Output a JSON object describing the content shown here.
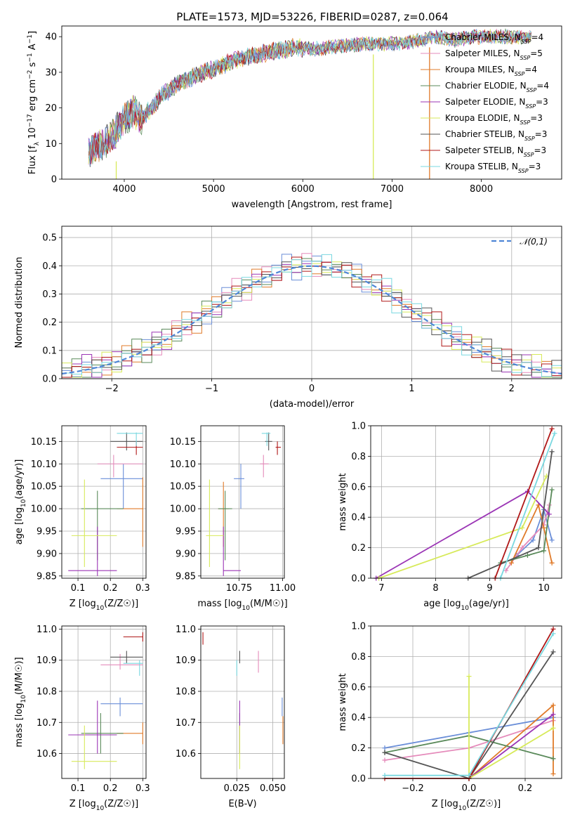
{
  "figure_title": "PLATE=1573, MJD=53226, FIBERID=0287, z=0.064",
  "colors": {
    "Chabrier MILES": "#6a8ed8",
    "Salpeter MILES": "#e58bbb",
    "Kroupa MILES": "#e07b2a",
    "Chabrier ELODIE": "#5a8a5a",
    "Salpeter ELODIE": "#9b35b5",
    "Kroupa ELODIE": "#d7ea5a",
    "Chabrier STELIB": "#555555",
    "Salpeter STELIB": "#b01818",
    "Kroupa STELIB": "#79d8e0",
    "grid": "#b0b0b0",
    "normal_curve": "#4f86d6"
  },
  "chart_data": [
    {
      "id": "spectrum",
      "type": "line",
      "xlabel": "wavelength [Angstrom, rest frame]",
      "ylabel": "Flux [f_λ 10^-17 erg cm^-2 s^-1 A^-1]",
      "xlim": [
        3300,
        8900
      ],
      "ylim": [
        0,
        43
      ],
      "xticks": [
        4000,
        5000,
        6000,
        7000,
        8000
      ],
      "yticks": [
        0,
        10,
        20,
        30,
        40
      ],
      "grid": false,
      "legend_position": "right",
      "legend": [
        {
          "label": "Chabrier MILES, N_SSP=4"
        },
        {
          "label": "Salpeter MILES, N_SSP=5"
        },
        {
          "label": "Kroupa MILES, N_SSP=4"
        },
        {
          "label": "Chabrier ELODIE, N_SSP=4"
        },
        {
          "label": "Salpeter ELODIE, N_SSP=3"
        },
        {
          "label": "Kroupa ELODIE, N_SSP=3"
        },
        {
          "label": "Chabrier STELIB, N_SSP=3"
        },
        {
          "label": "Salpeter STELIB, N_SSP=3"
        },
        {
          "label": "Kroupa STELIB, N_SSP=3"
        }
      ],
      "continuum": {
        "wavelength": [
          3600,
          3700,
          3800,
          3900,
          4000,
          4100,
          4200,
          4300,
          4400,
          4500,
          4600,
          4700,
          4800,
          4900,
          5000,
          5100,
          5200,
          5300,
          5500,
          5700,
          5900,
          6100,
          6300,
          6500,
          6700,
          6900,
          7100,
          7300,
          7500,
          7700,
          7900,
          8100,
          8300,
          8500
        ],
        "flux": [
          8,
          9,
          11,
          13,
          17,
          19,
          17,
          20,
          23,
          25,
          27,
          28,
          29,
          30,
          31,
          32,
          33,
          34,
          35,
          36,
          37,
          36.5,
          37,
          37.5,
          38,
          38,
          38,
          39,
          40,
          39,
          40,
          40,
          40,
          40
        ]
      },
      "spikes": [
        {
          "x": 3910,
          "y_top": 5
        },
        {
          "x": 6790,
          "y_top": 35
        },
        {
          "x": 7420,
          "y_top": 37
        }
      ]
    },
    {
      "id": "residuals",
      "type": "histogram",
      "xlabel": "(data-model)/error",
      "ylabel": "Normed distribution",
      "xlim": [
        -2.5,
        2.5
      ],
      "ylim": [
        0,
        0.54
      ],
      "xticks": [
        -2,
        -1,
        0,
        1,
        2
      ],
      "yticks": [
        0.0,
        0.1,
        0.2,
        0.3,
        0.4,
        0.5
      ],
      "grid": true,
      "legend_position": "upper right",
      "legend": [
        {
          "label": "𝒩(0,1)",
          "style": "dashed"
        }
      ],
      "bins": {
        "start": -2.5,
        "width": 0.1,
        "count": 50
      },
      "noise_pattern": [
        0.01,
        -0.02,
        0.03,
        0.0,
        -0.01,
        0.02,
        -0.03,
        0.01,
        0.04,
        -0.02,
        0.0,
        0.02,
        -0.01,
        0.03,
        -0.04,
        0.02,
        0.05,
        -0.03,
        0.01,
        0.0,
        -0.02,
        0.03,
        0.06,
        -0.05,
        0.02,
        0.04,
        -0.03,
        0.01,
        -0.02,
        0.05,
        -0.04,
        0.02,
        0.0,
        0.03,
        -0.01,
        -0.03,
        0.02,
        0.01,
        -0.02,
        0.03,
        0.0,
        -0.01,
        0.02,
        -0.02,
        0.01,
        0.0,
        0.02,
        -0.01,
        0.01,
        0.0
      ]
    },
    {
      "id": "age_vs_Z",
      "type": "errorbar",
      "xlabel": "Z [log10(Z/Z☉)]",
      "ylabel": "age [log10(age/yr)]",
      "xlim": [
        0.05,
        0.31
      ],
      "ylim": [
        9.845,
        10.185
      ],
      "xticks": [
        0.1,
        0.2,
        0.3
      ],
      "yticks": [
        9.85,
        9.9,
        9.95,
        10.0,
        10.05,
        10.1,
        10.15
      ],
      "grid": true,
      "points": [
        {
          "series": "Chabrier MILES",
          "x": 0.24,
          "y": 10.067,
          "xerr": [
            0.17,
            0.3
          ],
          "yerr": [
            10.0,
            10.1
          ]
        },
        {
          "series": "Salpeter MILES",
          "x": 0.21,
          "y": 10.1,
          "xerr": [
            0.16,
            0.3
          ],
          "yerr": [
            10.07,
            10.12
          ]
        },
        {
          "series": "Kroupa MILES",
          "x": 0.3,
          "y": 10.0,
          "xerr": [
            0.22,
            0.3
          ],
          "yerr": [
            9.915,
            10.07
          ]
        },
        {
          "series": "Chabrier ELODIE",
          "x": 0.16,
          "y": 10.0,
          "xerr": [
            0.11,
            0.24
          ],
          "yerr": [
            9.885,
            10.04
          ]
        },
        {
          "series": "Salpeter ELODIE",
          "x": 0.16,
          "y": 9.862,
          "xerr": [
            0.07,
            0.22
          ],
          "yerr": [
            9.85,
            9.96
          ]
        },
        {
          "series": "Kroupa ELODIE",
          "x": 0.12,
          "y": 9.94,
          "xerr": [
            0.08,
            0.22
          ],
          "yerr": [
            9.87,
            10.065
          ]
        },
        {
          "series": "Chabrier STELIB",
          "x": 0.25,
          "y": 10.15,
          "xerr": [
            0.2,
            0.3
          ],
          "yerr": [
            10.13,
            10.17
          ]
        },
        {
          "series": "Salpeter STELIB",
          "x": 0.28,
          "y": 10.137,
          "xerr": [
            0.22,
            0.3
          ],
          "yerr": [
            10.12,
            10.15
          ]
        },
        {
          "series": "Kroupa STELIB",
          "x": 0.28,
          "y": 10.168,
          "xerr": [
            0.22,
            0.3
          ],
          "yerr": [
            10.14,
            10.17
          ]
        }
      ]
    },
    {
      "id": "age_vs_mass",
      "type": "errorbar",
      "xlabel": "mass [log10(M/M☉)]",
      "ylabel": "",
      "xlim": [
        10.53,
        11.01
      ],
      "ylim": [
        9.845,
        10.185
      ],
      "xticks": [
        10.75,
        11.0
      ],
      "xticklabels": [
        "10.75",
        "11.00"
      ],
      "yticks": [
        9.85,
        9.9,
        9.95,
        10.0,
        10.05,
        10.1,
        10.15
      ],
      "grid": true,
      "points": [
        {
          "series": "Chabrier MILES",
          "x": 10.76,
          "y": 10.067,
          "xerr": [
            10.72,
            10.78
          ],
          "yerr": [
            10.0,
            10.1
          ]
        },
        {
          "series": "Salpeter MILES",
          "x": 10.89,
          "y": 10.1,
          "xerr": [
            10.87,
            10.92
          ],
          "yerr": [
            10.07,
            10.12
          ]
        },
        {
          "series": "Kroupa MILES",
          "x": 10.66,
          "y": 10.0,
          "xerr": [
            10.63,
            10.69
          ],
          "yerr": [
            9.915,
            10.06
          ]
        },
        {
          "series": "Chabrier ELODIE",
          "x": 10.67,
          "y": 10.0,
          "xerr": [
            10.63,
            10.71
          ],
          "yerr": [
            9.885,
            10.04
          ]
        },
        {
          "series": "Salpeter ELODIE",
          "x": 10.66,
          "y": 9.862,
          "xerr": [
            10.66,
            10.76
          ],
          "yerr": [
            9.85,
            9.96
          ]
        },
        {
          "series": "Kroupa ELODIE",
          "x": 10.58,
          "y": 9.94,
          "xerr": [
            10.56,
            10.66
          ],
          "yerr": [
            9.87,
            10.065
          ]
        },
        {
          "series": "Chabrier STELIB",
          "x": 10.92,
          "y": 10.15,
          "xerr": [
            10.9,
            10.94
          ],
          "yerr": [
            10.13,
            10.17
          ]
        },
        {
          "series": "Salpeter STELIB",
          "x": 10.97,
          "y": 10.137,
          "xerr": [
            10.96,
            10.99
          ],
          "yerr": [
            10.12,
            10.15
          ]
        },
        {
          "series": "Kroupa STELIB",
          "x": 10.91,
          "y": 10.168,
          "xerr": [
            10.88,
            10.93
          ],
          "yerr": [
            10.14,
            10.17
          ]
        }
      ]
    },
    {
      "id": "massweight_vs_age",
      "type": "line",
      "xlabel": "age [log10(age/yr)]",
      "ylabel": "mass weight",
      "xlim": [
        6.8,
        10.33
      ],
      "ylim": [
        0,
        1.0
      ],
      "xticks": [
        7,
        8,
        9,
        10
      ],
      "yticks": [
        0.0,
        0.2,
        0.4,
        0.6,
        0.8,
        1.0
      ],
      "grid": true,
      "series": [
        {
          "name": "Chabrier MILES",
          "x": [
            9.5,
            9.8,
            10.0,
            10.15
          ],
          "y": [
            0.15,
            0.25,
            0.45,
            0.25
          ]
        },
        {
          "name": "Salpeter MILES",
          "x": [
            9.3,
            9.6,
            10.0,
            10.1
          ],
          "y": [
            0.05,
            0.2,
            0.35,
            0.48
          ]
        },
        {
          "name": "Kroupa MILES",
          "x": [
            9.4,
            9.9,
            10.0,
            10.15
          ],
          "y": [
            0.1,
            0.48,
            0.33,
            0.1
          ]
        },
        {
          "name": "Chabrier ELODIE",
          "x": [
            9.2,
            9.7,
            10.0,
            10.15
          ],
          "y": [
            0.1,
            0.15,
            0.18,
            0.58
          ]
        },
        {
          "name": "Salpeter ELODIE",
          "x": [
            6.9,
            9.7,
            10.1
          ],
          "y": [
            0.0,
            0.57,
            0.42
          ]
        },
        {
          "name": "Kroupa ELODIE",
          "x": [
            6.95,
            9.6,
            10.05
          ],
          "y": [
            0.0,
            0.33,
            0.67
          ]
        },
        {
          "name": "Chabrier STELIB",
          "x": [
            8.6,
            9.9,
            10.15
          ],
          "y": [
            0.0,
            0.2,
            0.83
          ]
        },
        {
          "name": "Salpeter STELIB",
          "x": [
            9.1,
            10.15
          ],
          "y": [
            0.0,
            0.98
          ]
        },
        {
          "name": "Kroupa STELIB",
          "x": [
            9.2,
            10.2
          ],
          "y": [
            0.0,
            0.95
          ]
        }
      ]
    },
    {
      "id": "mass_vs_Z",
      "type": "errorbar",
      "xlabel": "Z [log10(Z/Z☉)]",
      "ylabel": "mass [log10(M/M☉)]",
      "xlim": [
        0.05,
        0.31
      ],
      "ylim": [
        10.52,
        11.01
      ],
      "xticks": [
        0.1,
        0.2,
        0.3
      ],
      "yticks": [
        10.6,
        10.7,
        10.8,
        10.9,
        11.0
      ],
      "grid": true,
      "points": [
        {
          "series": "Chabrier MILES",
          "x": 0.23,
          "y": 10.76,
          "xerr": [
            0.17,
            0.3
          ],
          "yerr": [
            10.72,
            10.78
          ]
        },
        {
          "series": "Salpeter MILES",
          "x": 0.23,
          "y": 10.885,
          "xerr": [
            0.17,
            0.3
          ],
          "yerr": [
            10.87,
            10.92
          ]
        },
        {
          "series": "Kroupa MILES",
          "x": 0.3,
          "y": 10.665,
          "xerr": [
            0.22,
            0.3
          ],
          "yerr": [
            10.63,
            10.7
          ]
        },
        {
          "series": "Chabrier ELODIE",
          "x": 0.17,
          "y": 10.665,
          "xerr": [
            0.11,
            0.24
          ],
          "yerr": [
            10.6,
            10.73
          ]
        },
        {
          "series": "Salpeter ELODIE",
          "x": 0.16,
          "y": 10.66,
          "xerr": [
            0.07,
            0.22
          ],
          "yerr": [
            10.6,
            10.77
          ]
        },
        {
          "series": "Kroupa ELODIE",
          "x": 0.12,
          "y": 10.575,
          "xerr": [
            0.08,
            0.22
          ],
          "yerr": [
            10.55,
            10.69
          ]
        },
        {
          "series": "Chabrier STELIB",
          "x": 0.25,
          "y": 10.91,
          "xerr": [
            0.2,
            0.3
          ],
          "yerr": [
            10.89,
            10.93
          ]
        },
        {
          "series": "Salpeter STELIB",
          "x": 0.3,
          "y": 10.975,
          "xerr": [
            0.24,
            0.3
          ],
          "yerr": [
            10.96,
            10.99
          ]
        },
        {
          "series": "Kroupa STELIB",
          "x": 0.29,
          "y": 10.89,
          "xerr": [
            0.24,
            0.3
          ],
          "yerr": [
            10.85,
            10.9
          ]
        }
      ]
    },
    {
      "id": "mass_vs_ebv",
      "type": "errorbar",
      "xlabel": "E(B-V)",
      "ylabel": "",
      "xlim": [
        0.0,
        0.058
      ],
      "ylim": [
        10.52,
        11.01
      ],
      "xticks": [
        0.025,
        0.05
      ],
      "xticklabels": [
        "0.025",
        "0.050"
      ],
      "yticks": [
        10.6,
        10.7,
        10.8,
        10.9,
        11.0
      ],
      "grid": true,
      "points": [
        {
          "series": "Chabrier MILES",
          "x": 0.0565,
          "y": 10.76,
          "xerr": [
            0.0565,
            0.0565
          ],
          "yerr": [
            10.72,
            10.78
          ]
        },
        {
          "series": "Salpeter MILES",
          "x": 0.04,
          "y": 10.9,
          "xerr": [
            0.04,
            0.04
          ],
          "yerr": [
            10.86,
            10.93
          ]
        },
        {
          "series": "Kroupa MILES",
          "x": 0.057,
          "y": 10.665,
          "xerr": [
            0.057,
            0.057
          ],
          "yerr": [
            10.63,
            10.72
          ]
        },
        {
          "series": "Chabrier ELODIE",
          "x": 0.027,
          "y": 10.65,
          "xerr": [
            0.027,
            0.027
          ],
          "yerr": [
            10.6,
            10.73
          ]
        },
        {
          "series": "Salpeter ELODIE",
          "x": 0.027,
          "y": 10.72,
          "xerr": [
            0.027,
            0.027
          ],
          "yerr": [
            10.6,
            10.77
          ]
        },
        {
          "series": "Kroupa ELODIE",
          "x": 0.027,
          "y": 10.6,
          "xerr": [
            0.027,
            0.027
          ],
          "yerr": [
            10.55,
            10.69
          ]
        },
        {
          "series": "Chabrier STELIB",
          "x": 0.027,
          "y": 10.91,
          "xerr": [
            0.027,
            0.027
          ],
          "yerr": [
            10.89,
            10.93
          ]
        },
        {
          "series": "Salpeter STELIB",
          "x": 0.0015,
          "y": 10.965,
          "xerr": [
            0.0015,
            0.0015
          ],
          "yerr": [
            10.95,
            10.99
          ]
        },
        {
          "series": "Kroupa STELIB",
          "x": 0.025,
          "y": 10.88,
          "xerr": [
            0.025,
            0.025
          ],
          "yerr": [
            10.85,
            10.9
          ]
        }
      ]
    },
    {
      "id": "massweight_vs_Z",
      "type": "line",
      "xlabel": "Z [log10(Z/Z☉)]",
      "ylabel": "mass weight",
      "xlim": [
        -0.35,
        0.33
      ],
      "ylim": [
        0,
        1.0
      ],
      "xticks": [
        -0.2,
        0.0,
        0.2
      ],
      "xticklabels": [
        "−0.2",
        "0.0",
        "0.2"
      ],
      "yticks": [
        0.0,
        0.2,
        0.4,
        0.6,
        0.8,
        1.0
      ],
      "grid": true,
      "series": [
        {
          "name": "Chabrier MILES",
          "x": [
            -0.3,
            0.0,
            0.3
          ],
          "y": [
            0.2,
            0.3,
            0.4
          ]
        },
        {
          "name": "Salpeter MILES",
          "x": [
            -0.3,
            0.0,
            0.3
          ],
          "y": [
            0.12,
            0.2,
            0.38
          ]
        },
        {
          "name": "Kroupa MILES",
          "x": [
            0.0,
            0.3,
            0.3
          ],
          "y": [
            0.0,
            0.48,
            0.03
          ]
        },
        {
          "name": "Chabrier ELODIE",
          "x": [
            -0.3,
            0.0,
            0.3
          ],
          "y": [
            0.17,
            0.28,
            0.13
          ]
        },
        {
          "name": "Salpeter ELODIE",
          "x": [
            0.0,
            0.3
          ],
          "y": [
            0.0,
            0.42
          ]
        },
        {
          "name": "Kroupa ELODIE",
          "x": [
            0.0,
            0.0,
            0.3
          ],
          "y": [
            0.67,
            0.0,
            0.33
          ]
        },
        {
          "name": "Chabrier STELIB",
          "x": [
            -0.3,
            0.0,
            0.3
          ],
          "y": [
            0.17,
            0.0,
            0.83
          ]
        },
        {
          "name": "Salpeter STELIB",
          "x": [
            -0.3,
            0.0,
            0.3
          ],
          "y": [
            0.0,
            0.0,
            0.98
          ]
        },
        {
          "name": "Kroupa STELIB",
          "x": [
            -0.3,
            0.0,
            0.3
          ],
          "y": [
            0.02,
            0.02,
            0.95
          ]
        }
      ]
    }
  ]
}
